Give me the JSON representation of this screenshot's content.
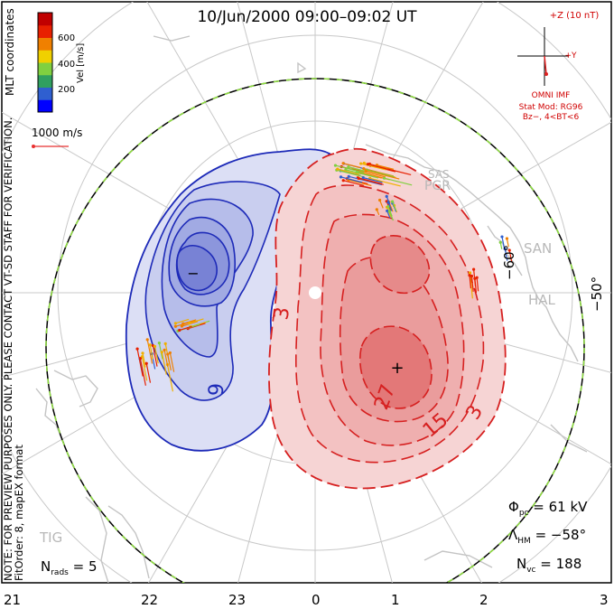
{
  "title": "10/Jun/2000 09:00–09:02 UT",
  "colorbar": {
    "label": "Vel [m/s]",
    "ticks": [
      "600",
      "400",
      "200"
    ],
    "colors": [
      "#0000ff",
      "#2f5fd0",
      "#30a060",
      "#80d040",
      "#f0d000",
      "#f08000",
      "#e82000",
      "#c00000"
    ]
  },
  "coords_label": "MLT coordinates",
  "scale_vector": "1000 m/s",
  "imf": {
    "plus_z": "+Z (10 nT)",
    "plus_y": "+Y",
    "source": "OMNI IMF",
    "stat_mod": "Stat Mod: RG96",
    "condition": "Bz−, 4<BT<6"
  },
  "notice": "NOTE: FOR PREVIEW PURPOSES ONLY. PLEASE CONTACT VT-SD STAFF FOR VERIFICATION.",
  "fit_info": "FitOrder: 8, mapEX format",
  "stats": {
    "phi_pc": "61 kV",
    "lambda_hm": "−58°",
    "n_vc": "188",
    "n_rads": "5"
  },
  "mlt_labels": [
    "21",
    "22",
    "23",
    "0",
    "1",
    "2",
    "3"
  ],
  "lat_labels": [
    "−60°",
    "−50°"
  ],
  "stations": [
    "SAS",
    "PGR",
    "SAN",
    "HAL",
    "TIG"
  ],
  "contour_labels": [
    "9",
    "3",
    "27",
    "15",
    "3"
  ],
  "extrema": {
    "min_marker": "−",
    "max_marker": "+"
  },
  "colors": {
    "positive": "#d62020",
    "negative": "#1d2ab8",
    "positive_fill": "#f6cccc",
    "negative_fill": "#d4d8f2"
  }
}
